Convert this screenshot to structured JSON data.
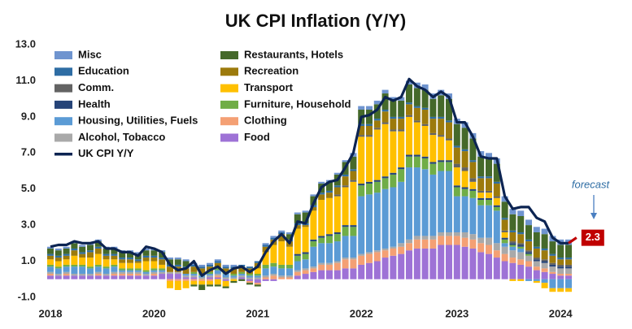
{
  "chart_data": {
    "type": "bar",
    "stacked": true,
    "title": "UK CPI Inflation (Y/Y)",
    "categories": [
      "2018",
      null,
      null,
      null,
      null,
      null,
      null,
      null,
      null,
      null,
      null,
      null,
      null,
      "2020",
      null,
      null,
      null,
      null,
      null,
      null,
      null,
      null,
      null,
      null,
      null,
      null,
      "2021",
      null,
      null,
      null,
      null,
      null,
      null,
      null,
      null,
      null,
      null,
      null,
      null,
      "2022",
      null,
      null,
      null,
      null,
      null,
      null,
      null,
      null,
      null,
      null,
      null,
      "2023",
      null,
      null,
      null,
      null,
      null,
      null,
      null,
      null,
      null,
      null,
      null,
      null,
      "2024",
      null,
      null
    ],
    "ylim": [
      -1.5,
      13.5
    ],
    "yticks": [
      {
        "value": -1,
        "label": "-1.0"
      },
      {
        "value": 1,
        "label": "1.0"
      },
      {
        "value": 3,
        "label": "3.0"
      },
      {
        "value": 5,
        "label": "5.0"
      },
      {
        "value": 7,
        "label": "7.0"
      },
      {
        "value": 9,
        "label": "9.0"
      },
      {
        "value": 11,
        "label": "11.0"
      },
      {
        "value": 13,
        "label": "13.0"
      }
    ],
    "grid": false,
    "series": [
      {
        "name": "Food",
        "color": "#9e72d6",
        "values": [
          0.2,
          0.2,
          0.2,
          0.2,
          0.2,
          0.2,
          0.2,
          0.2,
          0.2,
          0.2,
          0.2,
          0.2,
          0.2,
          0.2,
          0.3,
          0.3,
          0.3,
          0.1,
          0.1,
          0.0,
          0.1,
          0.1,
          -0.1,
          0.0,
          0.1,
          -0.1,
          -0.2,
          -0.1,
          -0.1,
          0.0,
          0.0,
          0.2,
          0.3,
          0.4,
          0.5,
          0.5,
          0.5,
          0.6,
          0.6,
          0.8,
          0.9,
          1.0,
          1.2,
          1.3,
          1.4,
          1.6,
          1.7,
          1.7,
          1.7,
          1.9,
          1.9,
          1.9,
          1.8,
          1.7,
          1.5,
          1.4,
          1.2,
          1.0,
          0.9,
          0.8,
          0.7,
          0.5,
          0.4,
          0.3,
          0.2,
          0.2,
          null
        ]
      },
      {
        "name": "Clothing",
        "color": "#f4a074",
        "values": [
          0.1,
          0.0,
          0.1,
          0.0,
          0.0,
          0.0,
          0.1,
          0.0,
          0.1,
          0.1,
          0.1,
          0.1,
          0.0,
          0.1,
          0.0,
          -0.1,
          -0.1,
          -0.1,
          -0.1,
          -0.1,
          -0.1,
          0.1,
          0.0,
          0.0,
          0.0,
          -0.1,
          -0.1,
          0.1,
          0.2,
          0.1,
          0.1,
          0.2,
          0.2,
          0.2,
          0.3,
          0.3,
          0.4,
          0.5,
          0.5,
          0.5,
          0.5,
          0.5,
          0.4,
          0.4,
          0.4,
          0.4,
          0.5,
          0.5,
          0.5,
          0.5,
          0.5,
          0.5,
          0.5,
          0.5,
          0.5,
          0.5,
          0.4,
          0.4,
          0.3,
          0.3,
          0.3,
          0.2,
          0.2,
          0.1,
          0.1,
          0.1,
          null
        ]
      },
      {
        "name": "Alcohol, Tobacco",
        "color": "#a9a9a9",
        "values": [
          0.1,
          0.1,
          0.1,
          0.1,
          0.1,
          0.1,
          0.1,
          0.1,
          0.1,
          0.1,
          0.1,
          0.1,
          0.1,
          0.1,
          0.1,
          0.1,
          0.1,
          0.1,
          0.1,
          0.1,
          0.1,
          0.1,
          0.1,
          0.1,
          0.1,
          0.1,
          0.1,
          0.1,
          0.1,
          0.1,
          0.1,
          0.1,
          0.1,
          0.1,
          0.1,
          0.1,
          0.1,
          0.1,
          0.1,
          0.1,
          0.1,
          0.1,
          0.1,
          0.1,
          0.2,
          0.2,
          0.2,
          0.2,
          0.2,
          0.2,
          0.2,
          0.2,
          0.3,
          0.3,
          0.3,
          0.4,
          0.4,
          0.4,
          0.4,
          0.4,
          0.3,
          0.3,
          0.3,
          0.3,
          0.3,
          0.3,
          null
        ]
      },
      {
        "name": "Housing, Utilities, Fuels",
        "color": "#5b9bd5",
        "values": [
          0.3,
          0.3,
          0.3,
          0.4,
          0.4,
          0.3,
          0.3,
          0.3,
          0.3,
          0.1,
          0.1,
          0.1,
          0.1,
          0.1,
          0.1,
          0.0,
          0.0,
          0.1,
          0.1,
          0.1,
          0.1,
          0.2,
          0.2,
          0.1,
          0.1,
          0.1,
          0.1,
          0.4,
          0.4,
          0.4,
          0.4,
          0.5,
          0.5,
          1.1,
          1.1,
          1.1,
          1.1,
          1.2,
          1.2,
          3.2,
          3.2,
          3.2,
          3.3,
          3.3,
          3.4,
          4.0,
          3.8,
          3.7,
          3.4,
          3.4,
          3.4,
          2.0,
          2.0,
          2.0,
          1.8,
          1.8,
          1.8,
          0.2,
          0.2,
          0.2,
          -0.1,
          -0.1,
          -0.2,
          -0.5,
          -0.5,
          -0.5,
          null
        ]
      },
      {
        "name": "Furniture, Household",
        "color": "#70ad47",
        "values": [
          0.1,
          0.1,
          0.1,
          0.1,
          0.1,
          0.1,
          0.1,
          0.1,
          0.1,
          0.1,
          0.1,
          0.1,
          0.1,
          0.1,
          0.1,
          0.0,
          0.0,
          0.0,
          0.1,
          0.1,
          0.1,
          0.1,
          0.1,
          0.1,
          0.1,
          0.1,
          0.1,
          0.2,
          0.2,
          0.2,
          0.2,
          0.3,
          0.3,
          0.3,
          0.3,
          0.4,
          0.4,
          0.5,
          0.5,
          0.6,
          0.6,
          0.6,
          0.6,
          0.7,
          0.7,
          0.6,
          0.6,
          0.6,
          0.6,
          0.5,
          0.5,
          0.5,
          0.4,
          0.4,
          0.3,
          0.3,
          0.2,
          0.2,
          0.1,
          0.1,
          0.1,
          0.0,
          0.0,
          0.0,
          0.0,
          0.0,
          null
        ]
      },
      {
        "name": "Health",
        "color": "#264478",
        "values": [
          0.0,
          0.0,
          0.0,
          0.0,
          0.0,
          0.0,
          0.0,
          0.0,
          0.0,
          0.0,
          0.0,
          0.0,
          0.0,
          0.0,
          0.0,
          0.0,
          0.0,
          0.0,
          0.0,
          0.0,
          0.0,
          0.0,
          0.0,
          0.0,
          0.0,
          0.0,
          0.0,
          0.0,
          0.0,
          0.0,
          0.0,
          0.1,
          0.1,
          0.1,
          0.1,
          0.1,
          0.1,
          0.1,
          0.1,
          0.1,
          0.1,
          0.1,
          0.1,
          0.1,
          0.1,
          0.1,
          0.1,
          0.1,
          0.1,
          0.1,
          0.1,
          0.1,
          0.1,
          0.1,
          0.1,
          0.1,
          0.1,
          0.1,
          0.1,
          0.1,
          0.1,
          0.1,
          0.1,
          0.1,
          0.1,
          0.1,
          null
        ]
      },
      {
        "name": "Transport",
        "color": "#ffc000",
        "values": [
          0.3,
          0.3,
          0.3,
          0.5,
          0.4,
          0.5,
          0.6,
          0.4,
          0.3,
          0.3,
          0.3,
          0.3,
          0.5,
          0.4,
          0.2,
          -0.4,
          -0.5,
          -0.4,
          -0.2,
          -0.2,
          -0.2,
          -0.3,
          -0.3,
          -0.1,
          0.0,
          0.0,
          0.3,
          0.7,
          1.0,
          1.3,
          1.0,
          1.4,
          1.4,
          1.6,
          2.0,
          2.0,
          2.0,
          2.1,
          2.4,
          2.6,
          2.5,
          2.8,
          2.9,
          2.3,
          2.0,
          2.1,
          1.8,
          1.7,
          1.5,
          1.3,
          1.1,
          1.0,
          0.9,
          0.4,
          0.3,
          0.3,
          0.4,
          0.3,
          -0.1,
          -0.1,
          0.0,
          -0.1,
          -0.3,
          -0.2,
          -0.2,
          -0.2,
          null
        ]
      },
      {
        "name": "Comm.",
        "color": "#636363",
        "values": [
          0.0,
          0.0,
          0.0,
          0.0,
          0.0,
          0.0,
          0.0,
          0.0,
          0.0,
          0.0,
          0.0,
          0.0,
          0.0,
          0.0,
          0.0,
          0.0,
          0.0,
          0.0,
          0.0,
          0.0,
          0.0,
          0.0,
          0.0,
          0.0,
          0.0,
          0.0,
          0.0,
          0.0,
          0.0,
          0.0,
          0.0,
          0.0,
          0.0,
          0.0,
          0.0,
          0.0,
          0.1,
          0.1,
          0.1,
          0.1,
          0.1,
          0.1,
          0.1,
          0.1,
          0.1,
          0.1,
          0.1,
          0.1,
          0.1,
          0.1,
          0.1,
          0.2,
          0.2,
          0.2,
          0.1,
          0.1,
          0.1,
          0.1,
          0.1,
          0.1,
          0.1,
          0.1,
          0.1,
          0.1,
          0.1,
          0.1,
          null
        ]
      },
      {
        "name": "Recreation",
        "color": "#9c7a0c",
        "values": [
          0.2,
          0.2,
          0.2,
          0.3,
          0.2,
          0.3,
          0.3,
          0.2,
          0.2,
          0.2,
          0.2,
          0.1,
          0.2,
          0.2,
          0.3,
          0.3,
          0.3,
          0.3,
          0.3,
          0.3,
          0.3,
          0.3,
          0.2,
          0.3,
          0.3,
          0.3,
          0.3,
          0.3,
          0.3,
          0.4,
          0.3,
          0.2,
          0.1,
          0.2,
          0.3,
          0.3,
          0.4,
          0.5,
          0.5,
          0.5,
          0.5,
          0.4,
          0.6,
          0.6,
          0.6,
          0.6,
          0.7,
          0.8,
          0.8,
          0.9,
          0.9,
          0.9,
          0.9,
          0.9,
          0.7,
          0.7,
          0.7,
          0.6,
          0.5,
          0.5,
          0.5,
          0.5,
          0.5,
          0.4,
          0.3,
          0.3,
          null
        ]
      },
      {
        "name": "Education",
        "color": "#2e6da4",
        "values": [
          0.1,
          0.1,
          0.1,
          0.1,
          0.1,
          0.1,
          0.1,
          0.1,
          0.1,
          0.1,
          0.1,
          0.1,
          0.1,
          0.1,
          0.1,
          0.1,
          0.1,
          0.1,
          0.1,
          0.1,
          0.1,
          0.1,
          0.1,
          0.1,
          0.1,
          0.1,
          0.1,
          0.1,
          0.1,
          0.1,
          0.1,
          0.1,
          0.1,
          0.1,
          0.1,
          0.1,
          0.1,
          0.1,
          0.1,
          0.1,
          0.1,
          0.1,
          0.1,
          0.1,
          0.1,
          0.1,
          0.1,
          0.1,
          0.1,
          0.1,
          0.1,
          0.1,
          0.1,
          0.1,
          0.1,
          0.1,
          0.1,
          0.1,
          0.1,
          0.1,
          0.1,
          0.1,
          0.1,
          0.1,
          0.1,
          0.1,
          null
        ]
      },
      {
        "name": "Restaurants, Hotels",
        "color": "#45692a",
        "values": [
          0.3,
          0.3,
          0.3,
          0.3,
          0.3,
          0.3,
          0.3,
          0.3,
          0.3,
          0.3,
          0.3,
          0.3,
          0.3,
          0.3,
          0.3,
          0.3,
          0.3,
          0.3,
          -0.1,
          -0.3,
          -0.1,
          -0.1,
          -0.1,
          -0.1,
          -0.1,
          -0.1,
          -0.1,
          0.0,
          0.0,
          0.0,
          0.3,
          0.5,
          0.6,
          0.5,
          0.5,
          0.5,
          0.6,
          0.7,
          0.7,
          0.8,
          0.8,
          0.8,
          0.9,
          0.9,
          0.9,
          1.0,
          1.0,
          1.0,
          1.0,
          1.2,
          1.2,
          1.2,
          1.2,
          1.2,
          1.1,
          1.0,
          1.0,
          0.9,
          0.9,
          0.9,
          0.8,
          0.8,
          0.8,
          0.7,
          0.7,
          0.7,
          null
        ]
      },
      {
        "name": "Misc",
        "color": "#6f94cf",
        "values": [
          0.1,
          0.1,
          0.1,
          0.1,
          0.1,
          0.1,
          0.1,
          0.1,
          0.1,
          0.1,
          0.1,
          0.1,
          0.1,
          0.1,
          0.1,
          0.1,
          0.1,
          0.1,
          0.1,
          0.1,
          0.1,
          0.1,
          0.1,
          0.1,
          0.0,
          0.0,
          0.0,
          0.1,
          0.1,
          0.1,
          0.1,
          0.1,
          0.1,
          0.1,
          0.1,
          0.1,
          0.1,
          0.1,
          0.2,
          0.2,
          0.2,
          0.2,
          0.2,
          0.2,
          0.2,
          0.2,
          0.3,
          0.3,
          0.3,
          0.3,
          0.3,
          0.3,
          0.3,
          0.3,
          0.3,
          0.3,
          0.3,
          0.3,
          0.3,
          0.3,
          0.3,
          0.3,
          0.3,
          0.3,
          0.3,
          0.3,
          null
        ]
      }
    ],
    "line": {
      "name": "UK CPI Y/Y",
      "color": "#0c2452",
      "values": [
        1.8,
        1.9,
        1.9,
        2.1,
        2.0,
        2.0,
        2.1,
        1.7,
        1.7,
        1.5,
        1.5,
        1.3,
        1.8,
        1.7,
        1.5,
        0.8,
        0.5,
        0.6,
        1.0,
        0.2,
        0.5,
        0.7,
        0.3,
        0.6,
        0.7,
        0.4,
        0.7,
        1.5,
        2.1,
        2.5,
        2.0,
        3.2,
        3.1,
        4.2,
        5.1,
        5.4,
        5.5,
        6.2,
        7.0,
        9.0,
        9.1,
        9.4,
        10.1,
        9.9,
        10.1,
        11.1,
        10.7,
        10.5,
        10.1,
        10.4,
        10.1,
        8.7,
        8.7,
        7.9,
        6.8,
        6.7,
        6.7,
        4.6,
        3.9,
        4.0,
        4.0,
        3.4,
        3.2,
        2.3,
        2.0,
        2.0,
        null
      ]
    },
    "forecast": {
      "label": "forecast",
      "color": "#c00000",
      "values": [
        null,
        null,
        null,
        null,
        null,
        null,
        null,
        null,
        null,
        null,
        null,
        null,
        null,
        null,
        null,
        null,
        null,
        null,
        null,
        null,
        null,
        null,
        null,
        null,
        null,
        null,
        null,
        null,
        null,
        null,
        null,
        null,
        null,
        null,
        null,
        null,
        null,
        null,
        null,
        null,
        null,
        null,
        null,
        null,
        null,
        null,
        null,
        null,
        null,
        null,
        null,
        null,
        null,
        null,
        null,
        null,
        null,
        null,
        null,
        null,
        null,
        null,
        null,
        null,
        null,
        2.0,
        2.3
      ]
    }
  }
}
